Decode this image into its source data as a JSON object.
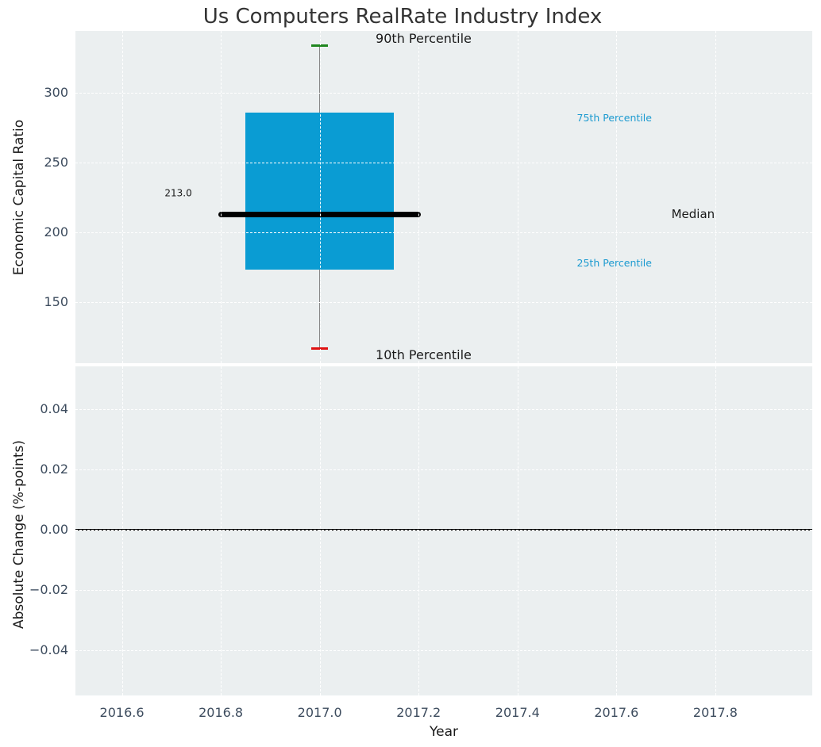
{
  "title": "Us Computers RealRate Industry Index",
  "colors": {
    "panel_bg": "#ebeff0",
    "grid": "#ffffff",
    "box_fill": "#0a9cd3",
    "median_line": "#000000",
    "whisker": "#888888",
    "cap_90th": "#1e861e",
    "cap_10th": "#e01111",
    "zero_line": "#000000",
    "tick_text": "#3d4c5e",
    "title_text": "#333333",
    "annotation_text": "#1a1a1a",
    "percentile_text": "#1b9ad0"
  },
  "chart_data": {
    "type": "boxplot",
    "title": "Us Computers RealRate Industry Index",
    "xlabel": "Year",
    "xlim": [
      2016.506,
      2017.996
    ],
    "xticks": [
      {
        "v": 2016.6,
        "label": "2016.6"
      },
      {
        "v": 2016.8,
        "label": "2016.8"
      },
      {
        "v": 2017.0,
        "label": "2017.0"
      },
      {
        "v": 2017.2,
        "label": "2017.2"
      },
      {
        "v": 2017.4,
        "label": "2017.4"
      },
      {
        "v": 2017.6,
        "label": "2017.6"
      },
      {
        "v": 2017.8,
        "label": "2017.8"
      }
    ],
    "grid": "white dashed, both panels",
    "top_panel": {
      "ylabel": "Economic Capital Ratio",
      "ylim": [
        106.2,
        344.3
      ],
      "yticks": [
        {
          "v": 150,
          "label": "150"
        },
        {
          "v": 200,
          "label": "200"
        },
        {
          "v": 250,
          "label": "250"
        },
        {
          "v": 300,
          "label": "300"
        }
      ],
      "box": {
        "x": 2017.0,
        "p10": 117,
        "p25": 173,
        "median": 213,
        "p75": 286,
        "p90": 334,
        "box_half_width": 0.15,
        "median_half_width": 0.205,
        "cap_half_width": 0.017
      }
    },
    "bottom_panel": {
      "ylabel": "Absolute Change (%-points)",
      "ylim": [
        -0.0551,
        0.0542
      ],
      "yticks": [
        {
          "v": -0.04,
          "label": "−0.04"
        },
        {
          "v": -0.02,
          "label": "−0.02"
        },
        {
          "v": 0.0,
          "label": "0.00"
        },
        {
          "v": 0.02,
          "label": "0.02"
        },
        {
          "v": 0.04,
          "label": "0.04"
        }
      ],
      "zero_line_y": 0.0
    },
    "annotations": [
      {
        "id": "p90-label",
        "text": "90th Percentile",
        "panel": "top",
        "x": 2017.21,
        "y": 338.5,
        "size": 16,
        "color": "#1a1a1a",
        "anchor": "middle"
      },
      {
        "id": "p10-label",
        "text": "10th Percentile",
        "panel": "top",
        "x": 2017.21,
        "y": 112.0,
        "size": 16,
        "color": "#1a1a1a",
        "anchor": "middle"
      },
      {
        "id": "median-label",
        "text": "Median",
        "panel": "top",
        "x": 2017.755,
        "y": 213.0,
        "size": 15,
        "color": "#1a1a1a",
        "anchor": "middle"
      },
      {
        "id": "p75-label",
        "text": "75th Percentile",
        "panel": "top",
        "x": 2017.52,
        "y": 282.0,
        "size": 12.5,
        "color": "#1b9ad0",
        "anchor": "start"
      },
      {
        "id": "p25-label",
        "text": "25th Percentile",
        "panel": "top",
        "x": 2017.52,
        "y": 178.0,
        "size": 12.5,
        "color": "#1b9ad0",
        "anchor": "start"
      },
      {
        "id": "median-value-label",
        "text": "213.0",
        "panel": "top",
        "x": 2016.714,
        "y": 228.0,
        "size": 12,
        "color": "#1a1a1a",
        "anchor": "middle"
      }
    ]
  }
}
